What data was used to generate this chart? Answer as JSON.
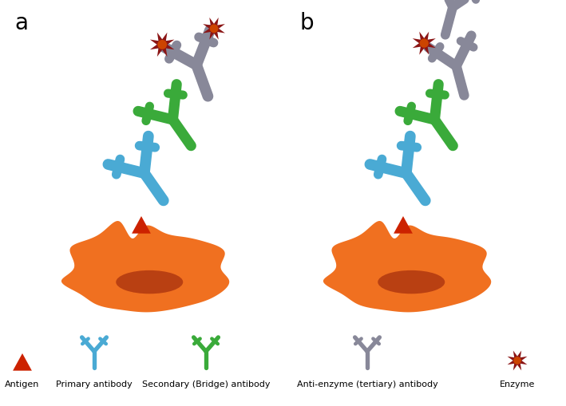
{
  "background_color": "#ffffff",
  "panel_a_label": "a",
  "panel_b_label": "b",
  "label_fontsize": 20,
  "cell_color_outer": "#f07020",
  "cell_color_inner": "#b03810",
  "antigen_color": "#cc2200",
  "primary_ab_color": "#4aaad4",
  "secondary_ab_color": "#3aaa3a",
  "tertiary_ab_color": "#888899",
  "enzyme_color": "#8b1515",
  "enzyme_center_color": "#cc4400",
  "legend_antigen_label": "Antigen",
  "legend_primary_label": "Primary antibody",
  "legend_secondary_label": "Secondary (Bridge) antibody",
  "legend_tertiary_label": "Anti-enzyme (tertiary) antibody",
  "legend_enzyme_label": "Enzyme"
}
